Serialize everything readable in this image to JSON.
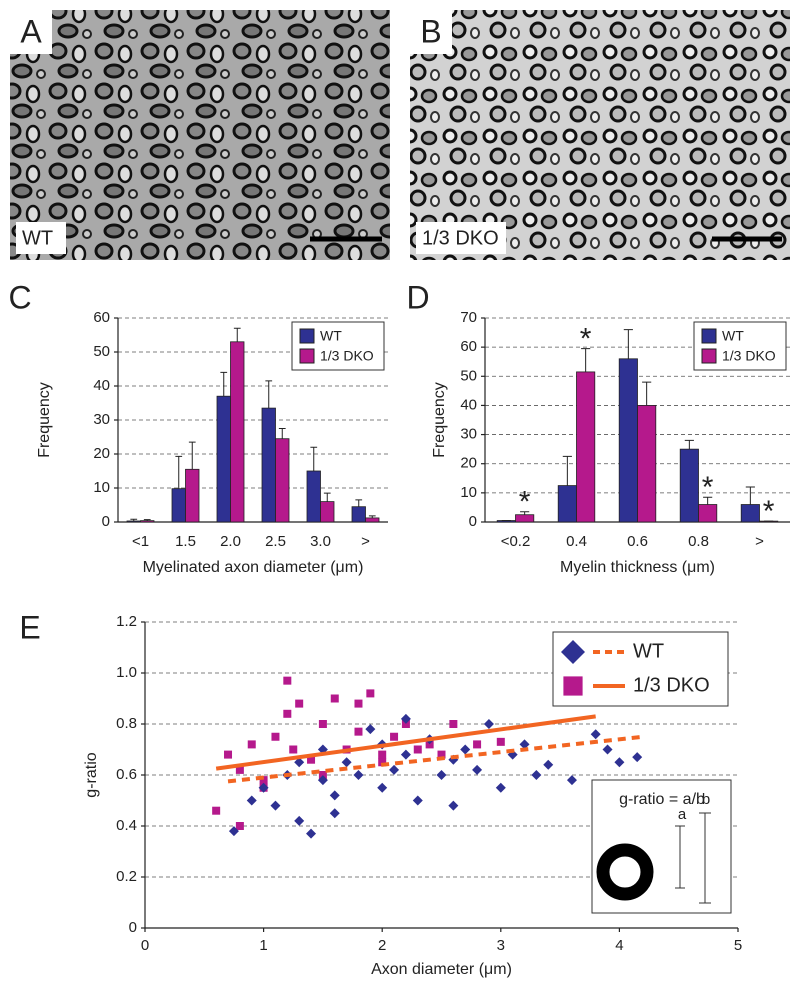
{
  "images": [
    {
      "letter": "A",
      "label": "WT"
    },
    {
      "letter": "B",
      "label": "1/3 DKO"
    }
  ],
  "chart_data": [
    {
      "type": "bar",
      "panel": "C",
      "ylabel": "Frequency",
      "xlabel": "Myelinated axon diameter (μm)",
      "categories": [
        "<1",
        "1.5",
        "2.0",
        "2.5",
        "3.0",
        ">"
      ],
      "series": [
        {
          "name": "WT",
          "color": "#2e3192",
          "values": [
            0.3,
            9.8,
            37,
            33.5,
            15,
            4.5
          ],
          "errors": [
            0.5,
            9.5,
            7,
            8,
            7,
            2
          ]
        },
        {
          "name": "1/3 DKO",
          "color": "#b5198c",
          "values": [
            0.4,
            15.5,
            53,
            24.5,
            6,
            1.2
          ],
          "errors": [
            0.3,
            8,
            4,
            3,
            2.5,
            0.6
          ]
        }
      ],
      "ylim": [
        0,
        60
      ],
      "yticks": [
        0,
        10,
        20,
        30,
        40,
        50,
        60
      ],
      "grid": true,
      "legend": "upper right"
    },
    {
      "type": "bar",
      "panel": "D",
      "ylabel": "Frequency",
      "xlabel": "Myelin thickness (μm)",
      "categories": [
        "<0.2",
        "0.4",
        "0.6",
        "0.8",
        ">"
      ],
      "series": [
        {
          "name": "WT",
          "color": "#2e3192",
          "values": [
            0.5,
            12.5,
            56,
            25,
            6
          ],
          "errors": [
            0,
            10,
            10,
            3,
            6
          ]
        },
        {
          "name": "1/3 DKO",
          "color": "#b5198c",
          "values": [
            2.5,
            51.5,
            40,
            6,
            0.3
          ],
          "errors": [
            1,
            8,
            8,
            2.5,
            0
          ]
        }
      ],
      "annotations": [
        {
          "text": "*",
          "series": 1,
          "index": 0
        },
        {
          "text": "*",
          "series": 1,
          "index": 1
        },
        {
          "text": "*",
          "series": 1,
          "index": 3
        },
        {
          "text": "*",
          "series": 1,
          "index": 4
        }
      ],
      "ylim": [
        0,
        70
      ],
      "yticks": [
        0,
        10,
        20,
        30,
        40,
        50,
        60,
        70
      ],
      "grid": true,
      "legend": "upper right"
    },
    {
      "type": "scatter",
      "panel": "E",
      "ylabel": "g-ratio",
      "xlabel": "Axon diameter (μm)",
      "series": [
        {
          "name": "WT",
          "color": "#2e3192",
          "marker": "diamond",
          "x": [
            0.75,
            0.9,
            1.0,
            1.1,
            1.2,
            1.3,
            1.4,
            1.5,
            1.5,
            1.6,
            1.7,
            1.8,
            1.9,
            2.0,
            2.0,
            2.1,
            2.2,
            2.3,
            2.4,
            2.5,
            2.6,
            2.7,
            2.8,
            2.9,
            3.0,
            3.1,
            3.2,
            3.4,
            3.6,
            3.8,
            3.9,
            4.0,
            4.15,
            1.3,
            1.6,
            2.2,
            2.6,
            3.3
          ],
          "values": [
            0.38,
            0.5,
            0.55,
            0.48,
            0.6,
            0.42,
            0.37,
            0.58,
            0.7,
            0.52,
            0.65,
            0.6,
            0.78,
            0.55,
            0.72,
            0.62,
            0.68,
            0.5,
            0.74,
            0.6,
            0.66,
            0.7,
            0.62,
            0.8,
            0.55,
            0.68,
            0.72,
            0.64,
            0.58,
            0.76,
            0.7,
            0.65,
            0.67,
            0.65,
            0.45,
            0.82,
            0.48,
            0.6
          ],
          "trend": {
            "color": "#f26522",
            "dashed": true,
            "x": [
              0.7,
              4.2
            ],
            "values": [
              0.575,
              0.75
            ]
          }
        },
        {
          "name": "1/3 DKO",
          "color": "#b5198c",
          "marker": "square",
          "x": [
            0.6,
            0.7,
            0.8,
            0.9,
            1.0,
            1.1,
            1.2,
            1.25,
            1.3,
            1.4,
            1.5,
            1.6,
            1.7,
            1.8,
            1.9,
            2.0,
            2.1,
            2.2,
            2.3,
            2.4,
            2.5,
            2.6,
            2.8,
            3.0,
            0.8,
            1.0,
            1.2,
            1.5,
            1.8,
            2.0
          ],
          "values": [
            0.46,
            0.68,
            0.62,
            0.72,
            0.58,
            0.75,
            0.97,
            0.7,
            0.88,
            0.66,
            0.8,
            0.9,
            0.7,
            0.77,
            0.92,
            0.68,
            0.75,
            0.8,
            0.7,
            0.72,
            0.68,
            0.8,
            0.72,
            0.73,
            0.4,
            0.55,
            0.84,
            0.6,
            0.88,
            0.65
          ],
          "trend": {
            "color": "#f26522",
            "dashed": false,
            "x": [
              0.6,
              3.8
            ],
            "values": [
              0.625,
              0.83
            ]
          }
        }
      ],
      "inset": {
        "formula": "g-ratio = a/b",
        "a": "a",
        "b": "b"
      },
      "xlim": [
        0,
        5
      ],
      "xticks": [
        0,
        1,
        2,
        3,
        4,
        5
      ],
      "ylim": [
        0,
        1.2
      ],
      "yticks": [
        0,
        0.2,
        0.4,
        0.6,
        0.8,
        {
          "value": 1.0,
          "label": "1.0"
        },
        1.2
      ],
      "grid": true,
      "legend": "upper right"
    }
  ]
}
